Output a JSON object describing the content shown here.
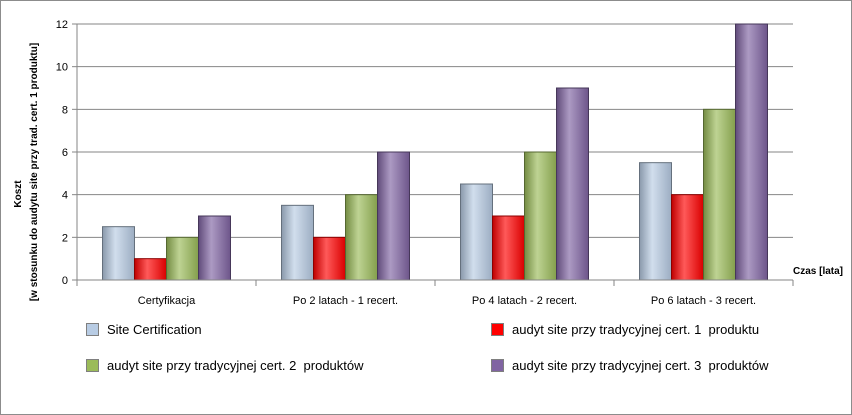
{
  "chart_data": {
    "type": "bar",
    "ylabel_line1": "Koszt",
    "ylabel_line2": "[w stosunku do audytu site przy trad. cert. 1 produktu]",
    "xlabel": "Czas [lata]",
    "ylim": [
      0,
      12
    ],
    "yticks": [
      "0",
      "2",
      "4",
      "6",
      "8",
      "10",
      "12"
    ],
    "grid": true,
    "legend_position": "bottom",
    "categories": [
      "Certyfikacja",
      "Po 2 latach - 1 recert.",
      "Po 4 latach - 2 recert.",
      "Po 6 latach - 3 recert."
    ],
    "series": [
      {
        "name": "Site Certification",
        "values": [
          2.5,
          3.5,
          4.5,
          5.5
        ],
        "color": "#b8cce4"
      },
      {
        "name": "audyt site przy tradycyjnej cert. 1  produktu",
        "values": [
          1,
          2,
          3,
          4
        ],
        "color": "#ff0000"
      },
      {
        "name": "audyt site przy tradycyjnej cert. 2  produktów",
        "values": [
          2,
          4,
          6,
          8
        ],
        "color": "#9bbb59"
      },
      {
        "name": "audyt site przy tradycyjnej cert. 3  produktów",
        "values": [
          3,
          6,
          9,
          12
        ],
        "color": "#8064a2"
      }
    ]
  }
}
